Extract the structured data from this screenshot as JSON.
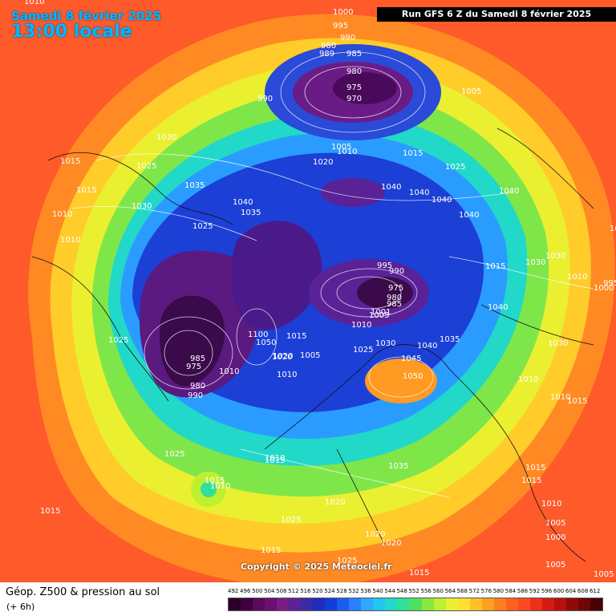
{
  "header": {
    "date": "Samedi 8 février 2025",
    "time": "13:00 locale",
    "run": "Run GFS 6 Z du Samedi 8 février 2025"
  },
  "footer": {
    "title": "Géop. Z500 & pression au sol",
    "subtitle": "(+ 6h)"
  },
  "copyright": "Copyright © 2025 Meteociel.fr",
  "legend": {
    "ticks": [
      "492",
      "496",
      "500",
      "504",
      "508",
      "512",
      "516",
      "520",
      "524",
      "528",
      "532",
      "536",
      "540",
      "544",
      "548",
      "552",
      "556",
      "560",
      "564",
      "568",
      "572",
      "576",
      "580",
      "584",
      "588",
      "592",
      "596",
      "600",
      "604",
      "608",
      "612"
    ],
    "colors": [
      "#2a002a",
      "#400040",
      "#5a0a5a",
      "#6a1070",
      "#7a1c86",
      "#5c2296",
      "#3a2aa6",
      "#1e2cc0",
      "#1040d8",
      "#1a5ef0",
      "#2a80ff",
      "#30a8ff",
      "#20c8f0",
      "#22d8c8",
      "#30e09a",
      "#50e060",
      "#8ae840",
      "#bff030",
      "#eaf030",
      "#ffe030",
      "#ffc02a",
      "#ffa020",
      "#ff8020",
      "#ff6020",
      "#ff4a20",
      "#ee3018",
      "#d41c14",
      "#b81010",
      "#900a0a",
      "#700606",
      "#480202"
    ]
  },
  "isobars": [
    "1010",
    "1000",
    "995",
    "990",
    "980",
    "989",
    "985",
    "980",
    "975",
    "970",
    "1005",
    "990",
    "1030",
    "1015",
    "1025",
    "1035",
    "1030",
    "1015",
    "1010",
    "1040",
    "1035",
    "1020",
    "1005",
    "1010",
    "1015",
    "1025",
    "1040",
    "1040",
    "1040",
    "1025",
    "1040",
    "1040",
    "1030",
    "1030",
    "1010",
    "995",
    "1000",
    "1010",
    "995",
    "990",
    "975",
    "980",
    "985",
    "1005",
    "1001",
    "1010",
    "1025",
    "1030",
    "1040",
    "1035",
    "1045",
    "1050",
    "1030",
    "1040",
    "1020",
    "1010",
    "1015",
    "1010",
    "1025",
    "985",
    "975",
    "1010",
    "980",
    "990",
    "1100",
    "1050",
    "1015",
    "1020",
    "1005",
    "1010",
    "1015",
    "1010",
    "1025",
    "1015",
    "1010",
    "1015",
    "1035",
    "1020",
    "1010",
    "1015",
    "1025",
    "1020",
    "1020",
    "1015",
    "1025",
    "1015",
    "1010",
    "1005",
    "1000",
    "1005",
    "1015",
    "1015",
    "1005"
  ]
}
